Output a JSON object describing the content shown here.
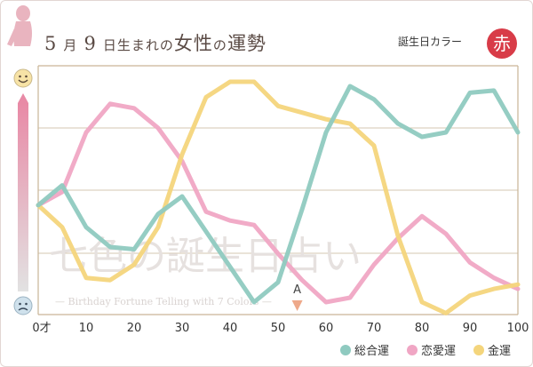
{
  "header": {
    "title_month": "5",
    "title_month_unit": "月",
    "title_day": "9",
    "title_rest": "日生まれの",
    "title_women": "女性",
    "title_no": "の",
    "title_fortune": "運勢",
    "birth_color_label": "誕生日カラー",
    "birth_color_value": "赤"
  },
  "watermark": {
    "main": "七色の誕生日占い",
    "sub": "— Birthday Fortune Telling with 7 Colors —"
  },
  "colors": {
    "overall": "#8fcac0",
    "love": "#f0a6c4",
    "money": "#f4d57c",
    "grid": "#c9b596",
    "badge": "#d83c48"
  },
  "icons": {
    "top": "smiley-face-icon",
    "bottom": "worried-face-icon",
    "marker": "triangle-down-icon"
  },
  "chart_data": {
    "type": "line",
    "x_axis_ticks": [
      "0才",
      "10",
      "20",
      "30",
      "40",
      "50",
      "60",
      "70",
      "80",
      "90",
      "100"
    ],
    "xlim": [
      0,
      100
    ],
    "ylim": [
      0,
      100
    ],
    "grid": true,
    "legend_position": "bottom-right",
    "annotation": {
      "label": "A",
      "x": 54
    },
    "x": [
      0,
      5,
      10,
      15,
      20,
      25,
      30,
      35,
      40,
      45,
      50,
      55,
      60,
      65,
      70,
      75,
      80,
      85,
      90,
      95,
      100
    ],
    "series": [
      {
        "name": "総合運",
        "key": "overall",
        "values": [
          44,
          53,
          34,
          25,
          24,
          40,
          48,
          32,
          16,
          0,
          9,
          42,
          77,
          98,
          92,
          81,
          75,
          77,
          95,
          96,
          77
        ]
      },
      {
        "name": "恋愛運",
        "key": "love",
        "values": [
          44,
          50,
          77,
          90,
          88,
          79,
          64,
          41,
          37,
          35,
          22,
          10,
          0,
          2,
          17,
          29,
          39,
          31,
          18,
          11,
          6
        ]
      },
      {
        "name": "金運",
        "key": "money",
        "values": [
          44,
          34,
          11,
          10,
          17,
          34,
          67,
          93,
          100,
          100,
          89,
          86,
          83,
          81,
          71,
          30,
          0,
          -5,
          3,
          6,
          8
        ]
      }
    ]
  }
}
